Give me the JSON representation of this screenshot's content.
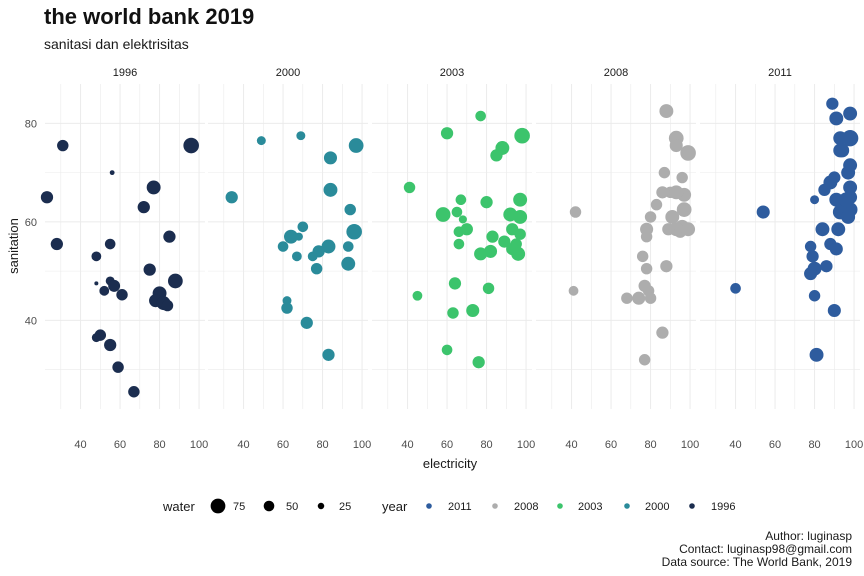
{
  "title": "the world bank 2019",
  "subtitle": "sanitasi dan elektrisitas",
  "caption": [
    "Author: luginasp",
    "Contact: luginasp98@gmail.com",
    "Data source: The World Bank, 2019"
  ],
  "chart_data": {
    "type": "scatter",
    "facet_by": "year",
    "xlabel": "electricity",
    "ylabel": "sanitation",
    "xlim": [
      22,
      103
    ],
    "ylim": [
      22,
      88
    ],
    "x_ticks": [
      40,
      60,
      80,
      100
    ],
    "y_ticks": [
      40,
      60,
      80
    ],
    "grid": true,
    "legend_position": "bottom",
    "size_legend": {
      "title": "water",
      "values": [
        75,
        50,
        25
      ]
    },
    "color_legend": {
      "title": "year",
      "entries": [
        {
          "label": "2011",
          "color": "#2E5C9E"
        },
        {
          "label": "2008",
          "color": "#ADADAD"
        },
        {
          "label": "2003",
          "color": "#3CC46C"
        },
        {
          "label": "2000",
          "color": "#2A8B9A"
        },
        {
          "label": "1996",
          "color": "#1B2D4F"
        }
      ]
    },
    "panels": [
      {
        "label": "1996",
        "color": "#1B2D4F",
        "points": [
          [
            31,
            75.5,
            55
          ],
          [
            23,
            65,
            60
          ],
          [
            56,
            70,
            15
          ],
          [
            28,
            55.5,
            60
          ],
          [
            55,
            55.5,
            50
          ],
          [
            48,
            53,
            45
          ],
          [
            48,
            47.5,
            10
          ],
          [
            55,
            48,
            40
          ],
          [
            57,
            47,
            58
          ],
          [
            52,
            46,
            45
          ],
          [
            61,
            45.2,
            55
          ],
          [
            72,
            63,
            60
          ],
          [
            77,
            67,
            70
          ],
          [
            96,
            75.5,
            80
          ],
          [
            85,
            57,
            60
          ],
          [
            75,
            50.3,
            60
          ],
          [
            88,
            48,
            75
          ],
          [
            80,
            45.5,
            70
          ],
          [
            78,
            44,
            65
          ],
          [
            82,
            43.5,
            70
          ],
          [
            84,
            43,
            55
          ],
          [
            50,
            37,
            55
          ],
          [
            48,
            36.5,
            40
          ],
          [
            55,
            35,
            60
          ],
          [
            59,
            30.5,
            55
          ],
          [
            67,
            25.5,
            55
          ]
        ]
      },
      {
        "label": "2000",
        "color": "#2A8B9A",
        "points": [
          [
            49,
            76.5,
            40
          ],
          [
            69,
            77.5,
            40
          ],
          [
            34,
            65,
            60
          ],
          [
            97,
            75.5,
            75
          ],
          [
            84,
            73,
            65
          ],
          [
            84,
            66.5,
            70
          ],
          [
            94,
            62.5,
            55
          ],
          [
            68,
            57,
            35
          ],
          [
            64,
            57,
            70
          ],
          [
            60,
            55,
            50
          ],
          [
            70,
            59,
            50
          ],
          [
            83,
            55,
            70
          ],
          [
            96,
            58,
            80
          ],
          [
            93,
            55,
            50
          ],
          [
            78,
            54,
            60
          ],
          [
            75,
            53,
            45
          ],
          [
            67,
            53,
            45
          ],
          [
            93,
            51.5,
            70
          ],
          [
            77,
            50.5,
            55
          ],
          [
            62,
            44,
            40
          ],
          [
            62,
            42.5,
            55
          ],
          [
            72,
            39.5,
            60
          ],
          [
            83,
            33,
            60
          ]
        ]
      },
      {
        "label": "2003",
        "color": "#3CC46C",
        "points": [
          [
            77,
            81.5,
            50
          ],
          [
            60,
            78,
            60
          ],
          [
            98,
            77.5,
            80
          ],
          [
            88,
            75,
            70
          ],
          [
            85,
            73.5,
            60
          ],
          [
            41,
            67,
            55
          ],
          [
            67,
            64.5,
            50
          ],
          [
            80,
            64,
            60
          ],
          [
            97,
            64.5,
            70
          ],
          [
            92,
            61.5,
            70
          ],
          [
            58,
            61.5,
            75
          ],
          [
            65,
            62,
            50
          ],
          [
            68,
            60.5,
            35
          ],
          [
            97,
            61,
            70
          ],
          [
            93,
            58.5,
            60
          ],
          [
            97,
            57.5,
            55
          ],
          [
            66,
            58,
            50
          ],
          [
            70,
            58.5,
            60
          ],
          [
            83,
            57,
            60
          ],
          [
            89,
            56,
            60
          ],
          [
            95,
            55.5,
            55
          ],
          [
            66,
            55.5,
            50
          ],
          [
            93,
            54.5,
            60
          ],
          [
            82,
            54,
            65
          ],
          [
            96,
            53.5,
            70
          ],
          [
            77,
            53.5,
            65
          ],
          [
            45,
            45,
            45
          ],
          [
            64,
            47.5,
            60
          ],
          [
            81,
            46.5,
            55
          ],
          [
            73,
            42,
            65
          ],
          [
            63,
            41.5,
            55
          ],
          [
            60,
            34,
            50
          ],
          [
            76,
            31.5,
            60
          ]
        ]
      },
      {
        "label": "2008",
        "color": "#ADADAD",
        "points": [
          [
            88,
            82.5,
            70
          ],
          [
            93,
            77,
            75
          ],
          [
            93,
            75.5,
            65
          ],
          [
            99,
            74,
            80
          ],
          [
            87,
            70,
            55
          ],
          [
            96,
            69,
            55
          ],
          [
            90,
            66,
            55
          ],
          [
            97,
            65.5,
            70
          ],
          [
            93,
            66,
            70
          ],
          [
            86,
            66,
            60
          ],
          [
            83,
            63.5,
            55
          ],
          [
            42,
            62,
            55
          ],
          [
            97,
            62.5,
            75
          ],
          [
            91,
            61,
            70
          ],
          [
            80,
            61,
            55
          ],
          [
            96,
            59,
            70
          ],
          [
            93,
            58.5,
            70
          ],
          [
            78,
            58.5,
            65
          ],
          [
            89,
            58.5,
            60
          ],
          [
            95,
            58,
            60
          ],
          [
            99,
            58.5,
            70
          ],
          [
            78,
            57,
            55
          ],
          [
            76,
            53,
            55
          ],
          [
            88,
            51,
            60
          ],
          [
            78,
            50.5,
            55
          ],
          [
            41,
            46,
            45
          ],
          [
            77,
            47,
            60
          ],
          [
            79,
            46,
            55
          ],
          [
            68,
            44.5,
            55
          ],
          [
            74,
            44.5,
            65
          ],
          [
            80,
            44.5,
            55
          ],
          [
            86,
            37.5,
            60
          ],
          [
            77,
            32,
            55
          ]
        ]
      },
      {
        "label": "2011",
        "color": "#2E5C9E",
        "points": [
          [
            89,
            84,
            60
          ],
          [
            91,
            81,
            70
          ],
          [
            98,
            82,
            70
          ],
          [
            93,
            77,
            70
          ],
          [
            98,
            77,
            85
          ],
          [
            94,
            74.5,
            70
          ],
          [
            93,
            74.5,
            70
          ],
          [
            98,
            71.5,
            70
          ],
          [
            90,
            69,
            60
          ],
          [
            97,
            70,
            70
          ],
          [
            88,
            68,
            70
          ],
          [
            85,
            66.5,
            60
          ],
          [
            98,
            67,
            70
          ],
          [
            98,
            65,
            70
          ],
          [
            91,
            64.5,
            70
          ],
          [
            94,
            62.5,
            75
          ],
          [
            98,
            62.5,
            75
          ],
          [
            93,
            62,
            75
          ],
          [
            97,
            61,
            70
          ],
          [
            96,
            64.5,
            75
          ],
          [
            80,
            64.5,
            40
          ],
          [
            54,
            62,
            65
          ],
          [
            84,
            58.5,
            70
          ],
          [
            92,
            58.5,
            70
          ],
          [
            88,
            55.5,
            60
          ],
          [
            78,
            55,
            55
          ],
          [
            79,
            53,
            60
          ],
          [
            91,
            54.5,
            65
          ],
          [
            80,
            50.5,
            70
          ],
          [
            78,
            49.5,
            65
          ],
          [
            86,
            51,
            60
          ],
          [
            40,
            46.5,
            50
          ],
          [
            80,
            45,
            55
          ],
          [
            90,
            42,
            65
          ],
          [
            81,
            33,
            70
          ]
        ]
      }
    ]
  }
}
